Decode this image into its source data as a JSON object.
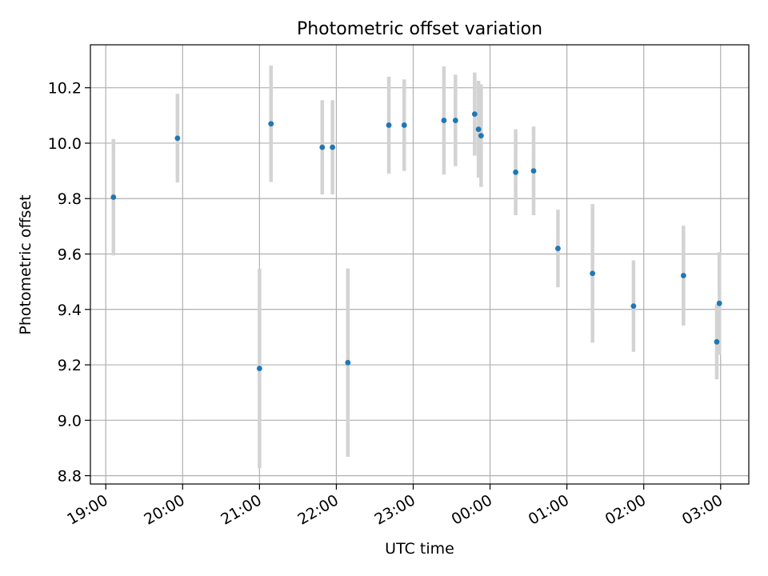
{
  "chart_data": {
    "type": "scatter",
    "title": "Photometric offset variation",
    "xlabel": "UTC time",
    "ylabel": "Photometric offset",
    "x_axis_kind": "time",
    "xlim": [
      "18:48",
      "03:22"
    ],
    "ylim": [
      8.77,
      10.355
    ],
    "x_ticks": [
      "19:00",
      "20:00",
      "21:00",
      "22:00",
      "23:00",
      "00:00",
      "01:00",
      "02:00",
      "03:00"
    ],
    "y_ticks": [
      "8.8",
      "9.0",
      "9.2",
      "9.4",
      "9.6",
      "9.8",
      "10.0",
      "10.2"
    ],
    "grid": true,
    "marker_color": "#1f77b4",
    "errorbar_color": "#d3d3d3",
    "series": [
      {
        "points": [
          {
            "x": "19:06",
            "y": 9.805,
            "err": 0.21
          },
          {
            "x": "19:56",
            "y": 10.018,
            "err": 0.16
          },
          {
            "x": "21:00",
            "y": 9.187,
            "err": 0.36
          },
          {
            "x": "21:09",
            "y": 10.07,
            "err": 0.21
          },
          {
            "x": "21:49",
            "y": 9.985,
            "err": 0.17
          },
          {
            "x": "21:57",
            "y": 9.985,
            "err": 0.17
          },
          {
            "x": "22:09",
            "y": 9.208,
            "err": 0.34
          },
          {
            "x": "22:41",
            "y": 10.065,
            "err": 0.175
          },
          {
            "x": "22:53",
            "y": 10.065,
            "err": 0.165
          },
          {
            "x": "23:24",
            "y": 10.082,
            "err": 0.195
          },
          {
            "x": "23:33",
            "y": 10.082,
            "err": 0.165
          },
          {
            "x": "23:48",
            "y": 10.105,
            "err": 0.15
          },
          {
            "x": "23:51",
            "y": 10.05,
            "err": 0.175
          },
          {
            "x": "23:53",
            "y": 10.027,
            "err": 0.185
          },
          {
            "x": "00:20",
            "y": 9.895,
            "err": 0.155
          },
          {
            "x": "00:34",
            "y": 9.9,
            "err": 0.16
          },
          {
            "x": "00:53",
            "y": 9.62,
            "err": 0.14
          },
          {
            "x": "01:20",
            "y": 9.53,
            "err": 0.25
          },
          {
            "x": "01:52",
            "y": 9.412,
            "err": 0.165
          },
          {
            "x": "02:31",
            "y": 9.522,
            "err": 0.18
          },
          {
            "x": "02:57",
            "y": 9.283,
            "err": 0.135
          },
          {
            "x": "02:59",
            "y": 9.422,
            "err": 0.185
          }
        ]
      }
    ]
  }
}
